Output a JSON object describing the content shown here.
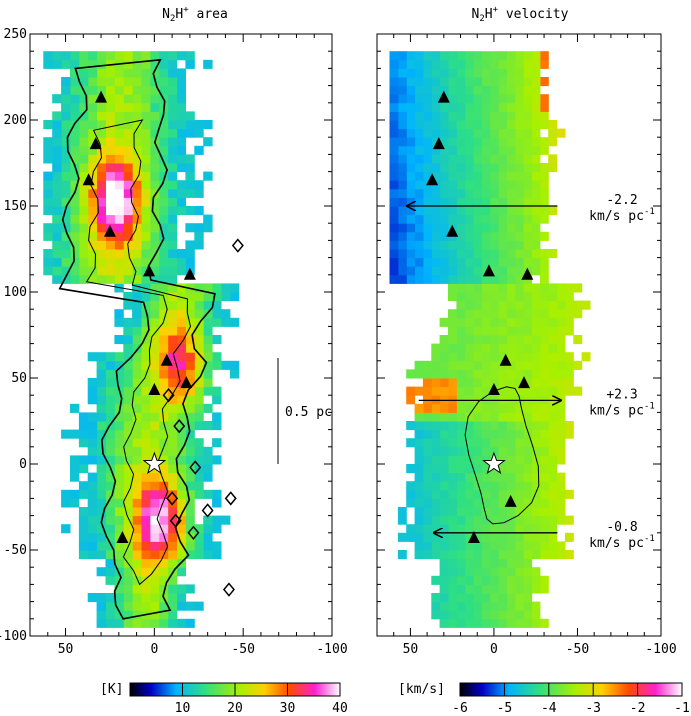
{
  "chart_data": [
    {
      "type": "heatmap",
      "title": "N2H+ area",
      "title_parts": {
        "main": "N",
        "sub": "2",
        "mid": "H",
        "sup": "+",
        "suffix": " area"
      },
      "x_axis_ticks": [
        "50",
        "0",
        "-50",
        "-100"
      ],
      "y_axis_ticks": [
        "250",
        "200",
        "150",
        "100",
        "50",
        "0",
        "-50",
        "-100"
      ],
      "xlim": [
        70,
        -100
      ],
      "ylim": [
        -100,
        250
      ],
      "colorbar": {
        "label": "[K]",
        "range": [
          0,
          40
        ],
        "ticks": [
          {
            "value": 10,
            "label": "10"
          },
          {
            "value": 20,
            "label": "20"
          },
          {
            "value": 30,
            "label": "30"
          },
          {
            "value": 40,
            "label": "40"
          }
        ]
      },
      "scale_bar": {
        "label": "0.5 pc",
        "x": -65,
        "y_from": 0,
        "y_to": 62
      },
      "peaks": [
        {
          "x": 22,
          "y": 150,
          "value": 38
        },
        {
          "x": -3,
          "y": -35,
          "value": 36
        },
        {
          "x": -15,
          "y": 55,
          "value": 30
        }
      ],
      "triangles": [
        [
          30,
          213
        ],
        [
          33,
          186
        ],
        [
          37,
          165
        ],
        [
          25,
          135
        ],
        [
          3,
          112
        ],
        [
          -20,
          110
        ],
        [
          -7,
          60
        ],
        [
          -18,
          47
        ],
        [
          0,
          43
        ],
        [
          18,
          -43
        ]
      ],
      "star": [
        0,
        0
      ],
      "diamonds": [
        [
          -10,
          -20
        ],
        [
          -12,
          -33
        ],
        [
          -22,
          -40
        ],
        [
          -30,
          -27
        ],
        [
          -43,
          -20
        ],
        [
          -47,
          127
        ],
        [
          -8,
          40
        ],
        [
          -14,
          22
        ],
        [
          -23,
          -2
        ],
        [
          -42,
          -73
        ]
      ]
    },
    {
      "type": "heatmap",
      "title": "N2H+ velocity",
      "title_parts": {
        "main": "N",
        "sub": "2",
        "mid": "H",
        "sup": "+",
        "suffix": " velocity"
      },
      "x_axis_ticks": [
        "50",
        "0",
        "-50",
        "-100"
      ],
      "y_axis_ticks": [
        "250",
        "200",
        "150",
        "100",
        "50",
        "0",
        "-50",
        "-100"
      ],
      "xlim": [
        70,
        -100
      ],
      "ylim": [
        -100,
        250
      ],
      "colorbar": {
        "label": "[km/s]",
        "range": [
          -6,
          -1
        ],
        "ticks": [
          {
            "value": -6,
            "label": "-6"
          },
          {
            "value": -5,
            "label": "-5"
          },
          {
            "value": -4,
            "label": "-4"
          },
          {
            "value": -3,
            "label": "-3"
          },
          {
            "value": -2,
            "label": "-2"
          },
          {
            "value": -1,
            "label": "-1"
          }
        ]
      },
      "gradients": [
        {
          "value": "-2.2",
          "unit": "km/s pc",
          "sup": "-1",
          "y": 150,
          "x_from": -38,
          "x_to": 52
        },
        {
          "value": "+2.3",
          "unit": "km/s pc",
          "sup": "-1",
          "y": 37,
          "x_from": 45,
          "x_to": -40
        },
        {
          "value": "-0.8",
          "unit": "km/s pc",
          "sup": "-1",
          "y": -40,
          "x_from": -38,
          "x_to": 36
        }
      ],
      "triangles": [
        [
          30,
          213
        ],
        [
          33,
          186
        ],
        [
          37,
          165
        ],
        [
          25,
          135
        ],
        [
          3,
          112
        ],
        [
          -20,
          110
        ],
        [
          -7,
          60
        ],
        [
          -18,
          47
        ],
        [
          0,
          43
        ],
        [
          -10,
          -22
        ],
        [
          12,
          -43
        ]
      ],
      "star": [
        0,
        0
      ]
    }
  ]
}
